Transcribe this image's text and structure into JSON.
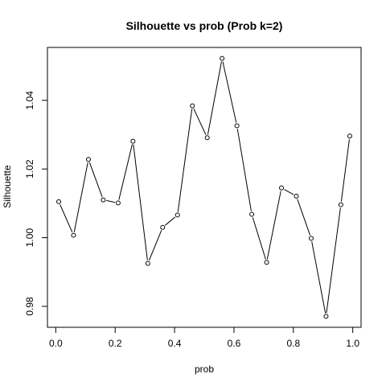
{
  "chart_data": {
    "type": "line",
    "title": "Silhouette vs prob (Prob k=2)",
    "xlabel": "prob",
    "ylabel": "Silhouette",
    "xlim": [
      -0.028,
      1.028
    ],
    "ylim": [
      0.9739,
      1.0554
    ],
    "xticks": [
      0.0,
      0.2,
      0.4,
      0.6,
      0.8,
      1.0
    ],
    "xtick_labels": [
      "0.0",
      "0.2",
      "0.4",
      "0.6",
      "0.8",
      "1.0"
    ],
    "yticks": [
      0.98,
      1.0,
      1.02,
      1.04
    ],
    "ytick_labels": [
      "0.98",
      "1.00",
      "1.02",
      "1.04"
    ],
    "grid": false,
    "marker": "open-circle",
    "line_color": "#000000",
    "x": [
      0.01,
      0.06,
      0.11,
      0.16,
      0.21,
      0.26,
      0.31,
      0.36,
      0.41,
      0.46,
      0.51,
      0.56,
      0.61,
      0.66,
      0.71,
      0.76,
      0.81,
      0.86,
      0.91,
      0.96,
      0.99
    ],
    "values": [
      1.0105,
      1.0007,
      1.0228,
      1.011,
      1.0101,
      1.0281,
      0.9925,
      1.003,
      1.0066,
      1.0384,
      1.0291,
      1.0522,
      1.0326,
      1.0068,
      0.9928,
      1.0145,
      1.0121,
      0.9998,
      0.9771,
      1.0096,
      1.0296
    ]
  }
}
